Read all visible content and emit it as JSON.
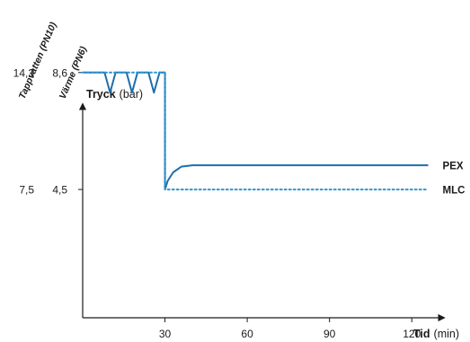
{
  "chart_data": {
    "type": "line",
    "y_axis": {
      "title": "Tryck",
      "unit": "(bar)"
    },
    "x_axis": {
      "title": "Tid",
      "unit": "(min)",
      "ticks": [
        30,
        60,
        90,
        120
      ],
      "range": [
        0,
        135
      ]
    },
    "scales": [
      {
        "name": "Tappvatten (PN10)",
        "ticks": [
          "14,3",
          "7,5"
        ],
        "tick_values": [
          8.6,
          4.5
        ]
      },
      {
        "name": "Värme (PN6)",
        "ticks": [
          "8,6",
          "4,5"
        ],
        "tick_values": [
          8.6,
          4.5
        ]
      }
    ],
    "y_range": [
      0,
      10.2
    ],
    "series": [
      {
        "name": "PEX",
        "style": "solid",
        "color": "#1f6faa",
        "points": [
          [
            0,
            8.6
          ],
          [
            8,
            8.6
          ],
          [
            10,
            7.9
          ],
          [
            12,
            8.6
          ],
          [
            16,
            8.6
          ],
          [
            18,
            7.9
          ],
          [
            20,
            8.6
          ],
          [
            24,
            8.6
          ],
          [
            26,
            7.9
          ],
          [
            28,
            8.6
          ],
          [
            30,
            8.6
          ],
          [
            30,
            4.5
          ],
          [
            31,
            4.8
          ],
          [
            33,
            5.1
          ],
          [
            36,
            5.3
          ],
          [
            40,
            5.35
          ],
          [
            126,
            5.35
          ]
        ]
      },
      {
        "name": "MLC",
        "style": "dotted",
        "color": "#2f95d4",
        "points": [
          [
            0,
            8.6
          ],
          [
            30,
            8.6
          ],
          [
            30,
            4.5
          ],
          [
            126,
            4.5
          ]
        ]
      }
    ]
  }
}
